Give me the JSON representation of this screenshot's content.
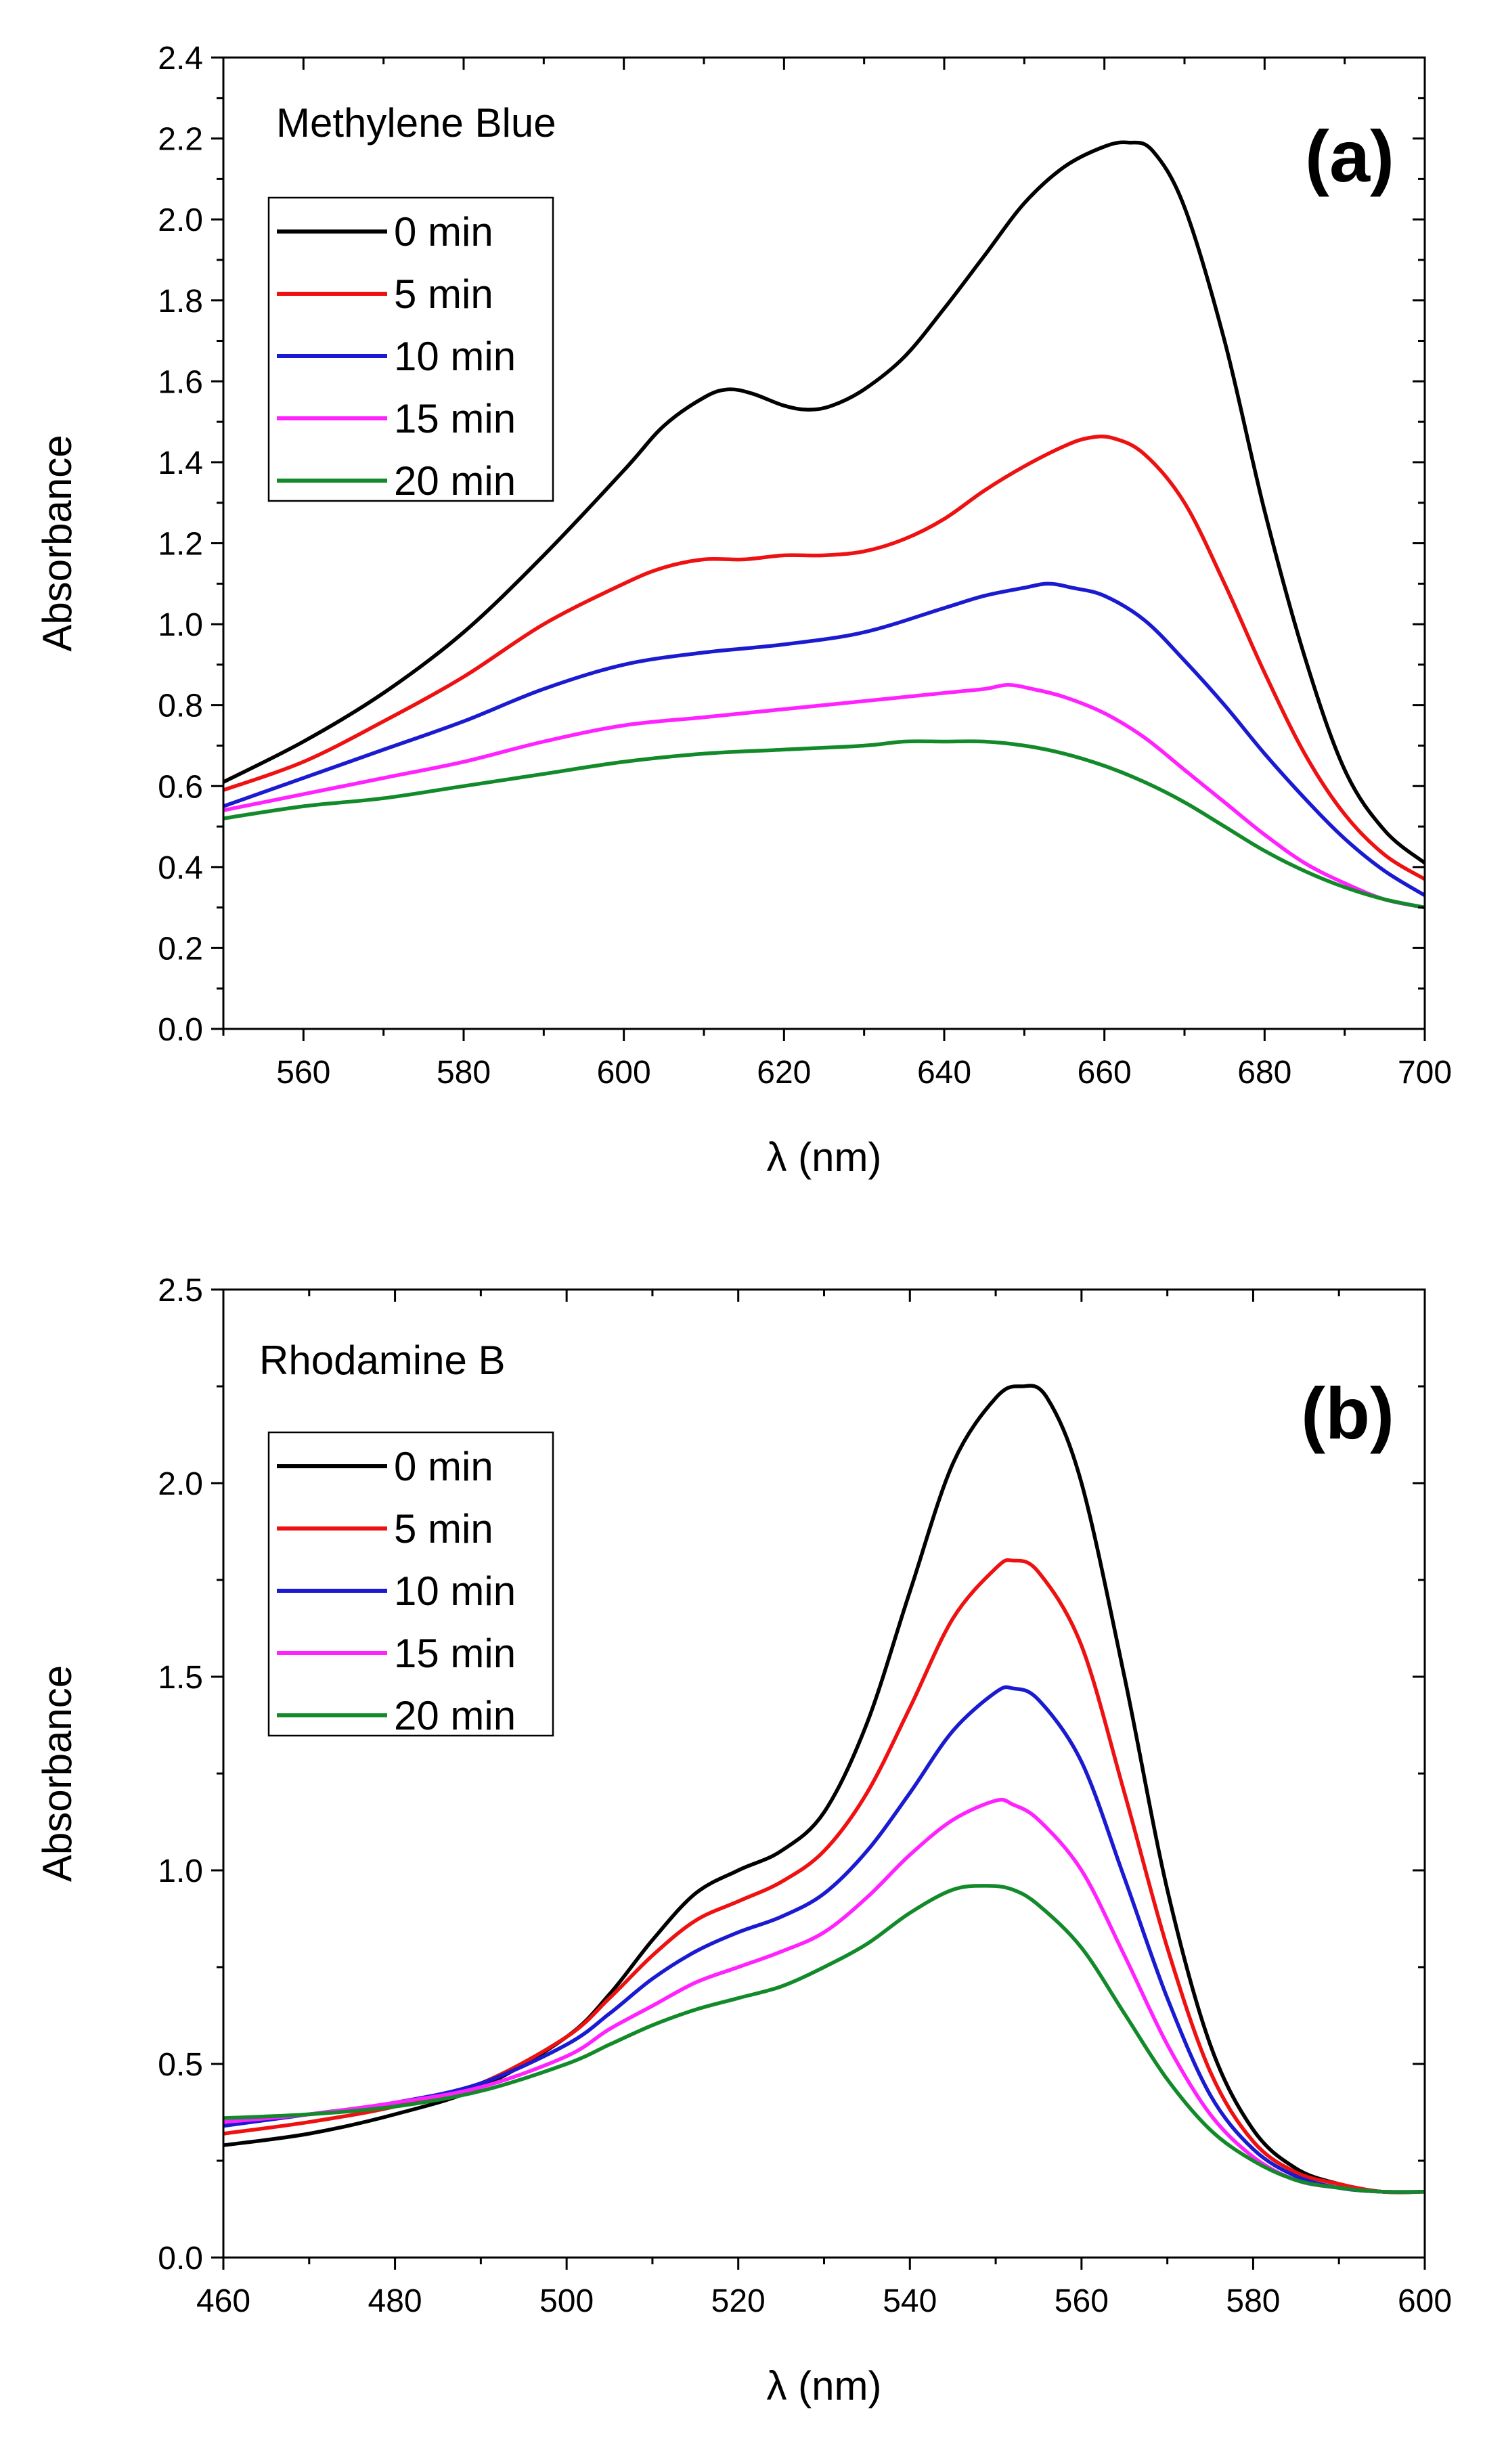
{
  "chart_data": [
    {
      "type": "line",
      "panel_label": "(a)",
      "annotation": "Methylene Blue",
      "xlabel": "λ (nm)",
      "ylabel": "Absorbance",
      "xlim": [
        550,
        700
      ],
      "ylim": [
        0,
        2.4
      ],
      "x_major_ticks": [
        560,
        580,
        600,
        620,
        640,
        660,
        680,
        700
      ],
      "x_minor_step": 10,
      "y_major_ticks": [
        0.0,
        0.2,
        0.4,
        0.6,
        0.8,
        1.0,
        1.2,
        1.4,
        1.6,
        1.8,
        2.0,
        2.2,
        2.4
      ],
      "y_minor_step": 0.1,
      "y_tick_format": 1,
      "legend_position": "upper-left",
      "series": [
        {
          "name": "0 min",
          "color": "#000000",
          "x": [
            550,
            560,
            570,
            580,
            590,
            600,
            605,
            610,
            613,
            616,
            620,
            623,
            626,
            630,
            635,
            640,
            645,
            650,
            655,
            660,
            663,
            666,
            670,
            675,
            680,
            685,
            690,
            695,
            700
          ],
          "values": [
            0.61,
            0.71,
            0.83,
            0.98,
            1.17,
            1.38,
            1.49,
            1.56,
            1.58,
            1.57,
            1.54,
            1.53,
            1.54,
            1.58,
            1.66,
            1.78,
            1.91,
            2.04,
            2.13,
            2.18,
            2.19,
            2.17,
            2.03,
            1.7,
            1.28,
            0.92,
            0.64,
            0.49,
            0.41
          ]
        },
        {
          "name": "5 min",
          "color": "#ee1111",
          "x": [
            550,
            560,
            570,
            580,
            590,
            600,
            605,
            610,
            615,
            620,
            625,
            630,
            635,
            640,
            645,
            650,
            655,
            658,
            661,
            665,
            670,
            675,
            680,
            685,
            690,
            695,
            700
          ],
          "values": [
            0.59,
            0.66,
            0.76,
            0.87,
            1.0,
            1.1,
            1.14,
            1.16,
            1.16,
            1.17,
            1.17,
            1.18,
            1.21,
            1.26,
            1.33,
            1.39,
            1.44,
            1.46,
            1.46,
            1.42,
            1.3,
            1.1,
            0.88,
            0.68,
            0.53,
            0.43,
            0.37
          ]
        },
        {
          "name": "10 min",
          "color": "#1a1ad0",
          "x": [
            550,
            560,
            570,
            580,
            590,
            600,
            610,
            620,
            630,
            640,
            645,
            650,
            653,
            656,
            660,
            665,
            670,
            675,
            680,
            685,
            690,
            695,
            700
          ],
          "values": [
            0.55,
            0.62,
            0.69,
            0.76,
            0.84,
            0.9,
            0.93,
            0.95,
            0.98,
            1.04,
            1.07,
            1.09,
            1.1,
            1.09,
            1.07,
            1.01,
            0.91,
            0.8,
            0.68,
            0.57,
            0.47,
            0.39,
            0.33
          ]
        },
        {
          "name": "15 min",
          "color": "#ff22ff",
          "x": [
            550,
            560,
            570,
            580,
            590,
            600,
            610,
            620,
            630,
            640,
            645,
            648,
            651,
            655,
            660,
            665,
            670,
            675,
            680,
            685,
            690,
            695,
            700
          ],
          "values": [
            0.54,
            0.58,
            0.62,
            0.66,
            0.71,
            0.75,
            0.77,
            0.79,
            0.81,
            0.83,
            0.84,
            0.85,
            0.84,
            0.82,
            0.78,
            0.72,
            0.64,
            0.56,
            0.48,
            0.41,
            0.36,
            0.32,
            0.3
          ]
        },
        {
          "name": "20 min",
          "color": "#128a2a",
          "x": [
            550,
            560,
            570,
            580,
            590,
            600,
            610,
            620,
            630,
            635,
            640,
            645,
            650,
            655,
            660,
            665,
            670,
            675,
            680,
            685,
            690,
            695,
            700
          ],
          "values": [
            0.52,
            0.55,
            0.57,
            0.6,
            0.63,
            0.66,
            0.68,
            0.69,
            0.7,
            0.71,
            0.71,
            0.71,
            0.7,
            0.68,
            0.65,
            0.61,
            0.56,
            0.5,
            0.44,
            0.39,
            0.35,
            0.32,
            0.3
          ]
        }
      ]
    },
    {
      "type": "line",
      "panel_label": "(b)",
      "annotation": "Rhodamine B",
      "xlabel": "λ (nm)",
      "ylabel": "Absorbance",
      "xlim": [
        460,
        600
      ],
      "ylim": [
        0,
        2.5
      ],
      "x_major_ticks": [
        460,
        480,
        500,
        520,
        540,
        560,
        580,
        600
      ],
      "x_minor_step": 10,
      "y_major_ticks": [
        0.0,
        0.5,
        1.0,
        1.5,
        2.0,
        2.5
      ],
      "y_minor_step": 0.25,
      "y_tick_format": 1,
      "legend_position": "upper-left",
      "series": [
        {
          "name": "0 min",
          "color": "#000000",
          "x": [
            460,
            470,
            480,
            490,
            500,
            505,
            510,
            515,
            520,
            525,
            530,
            535,
            540,
            545,
            550,
            553,
            556,
            560,
            565,
            570,
            575,
            580,
            585,
            590,
            595,
            600
          ],
          "values": [
            0.29,
            0.32,
            0.37,
            0.44,
            0.57,
            0.68,
            0.82,
            0.94,
            1.0,
            1.05,
            1.15,
            1.38,
            1.72,
            2.05,
            2.22,
            2.25,
            2.22,
            2.0,
            1.5,
            0.95,
            0.55,
            0.33,
            0.23,
            0.19,
            0.17,
            0.17
          ]
        },
        {
          "name": "5 min",
          "color": "#ee1111",
          "x": [
            460,
            470,
            480,
            490,
            500,
            505,
            510,
            515,
            520,
            525,
            530,
            535,
            540,
            545,
            550,
            552,
            555,
            560,
            565,
            570,
            575,
            580,
            585,
            590,
            595,
            600
          ],
          "values": [
            0.32,
            0.35,
            0.39,
            0.45,
            0.57,
            0.67,
            0.78,
            0.87,
            0.92,
            0.97,
            1.05,
            1.2,
            1.42,
            1.65,
            1.78,
            1.8,
            1.77,
            1.58,
            1.2,
            0.8,
            0.48,
            0.3,
            0.22,
            0.19,
            0.17,
            0.17
          ]
        },
        {
          "name": "10 min",
          "color": "#1a1ad0",
          "x": [
            460,
            470,
            480,
            490,
            500,
            505,
            510,
            515,
            520,
            525,
            530,
            535,
            540,
            545,
            550,
            552,
            555,
            560,
            565,
            570,
            575,
            580,
            585,
            590,
            595,
            600
          ],
          "values": [
            0.34,
            0.37,
            0.4,
            0.45,
            0.55,
            0.63,
            0.72,
            0.79,
            0.84,
            0.88,
            0.94,
            1.05,
            1.2,
            1.36,
            1.46,
            1.47,
            1.44,
            1.28,
            0.98,
            0.67,
            0.42,
            0.28,
            0.21,
            0.18,
            0.17,
            0.17
          ]
        },
        {
          "name": "15 min",
          "color": "#ff22ff",
          "x": [
            460,
            470,
            480,
            490,
            500,
            505,
            510,
            515,
            520,
            525,
            530,
            535,
            540,
            545,
            550,
            552,
            555,
            560,
            565,
            570,
            575,
            580,
            585,
            590,
            595,
            600
          ],
          "values": [
            0.35,
            0.37,
            0.4,
            0.44,
            0.52,
            0.59,
            0.65,
            0.71,
            0.75,
            0.79,
            0.84,
            0.93,
            1.04,
            1.13,
            1.18,
            1.17,
            1.13,
            1.0,
            0.78,
            0.55,
            0.37,
            0.26,
            0.2,
            0.18,
            0.17,
            0.17
          ]
        },
        {
          "name": "20 min",
          "color": "#128a2a",
          "x": [
            460,
            470,
            480,
            490,
            500,
            505,
            510,
            515,
            520,
            525,
            530,
            535,
            540,
            545,
            549,
            552,
            555,
            560,
            565,
            570,
            575,
            580,
            585,
            590,
            595,
            600
          ],
          "values": [
            0.36,
            0.37,
            0.39,
            0.43,
            0.5,
            0.55,
            0.6,
            0.64,
            0.67,
            0.7,
            0.75,
            0.81,
            0.89,
            0.95,
            0.96,
            0.95,
            0.91,
            0.8,
            0.63,
            0.46,
            0.33,
            0.25,
            0.2,
            0.18,
            0.17,
            0.17
          ]
        }
      ]
    }
  ]
}
